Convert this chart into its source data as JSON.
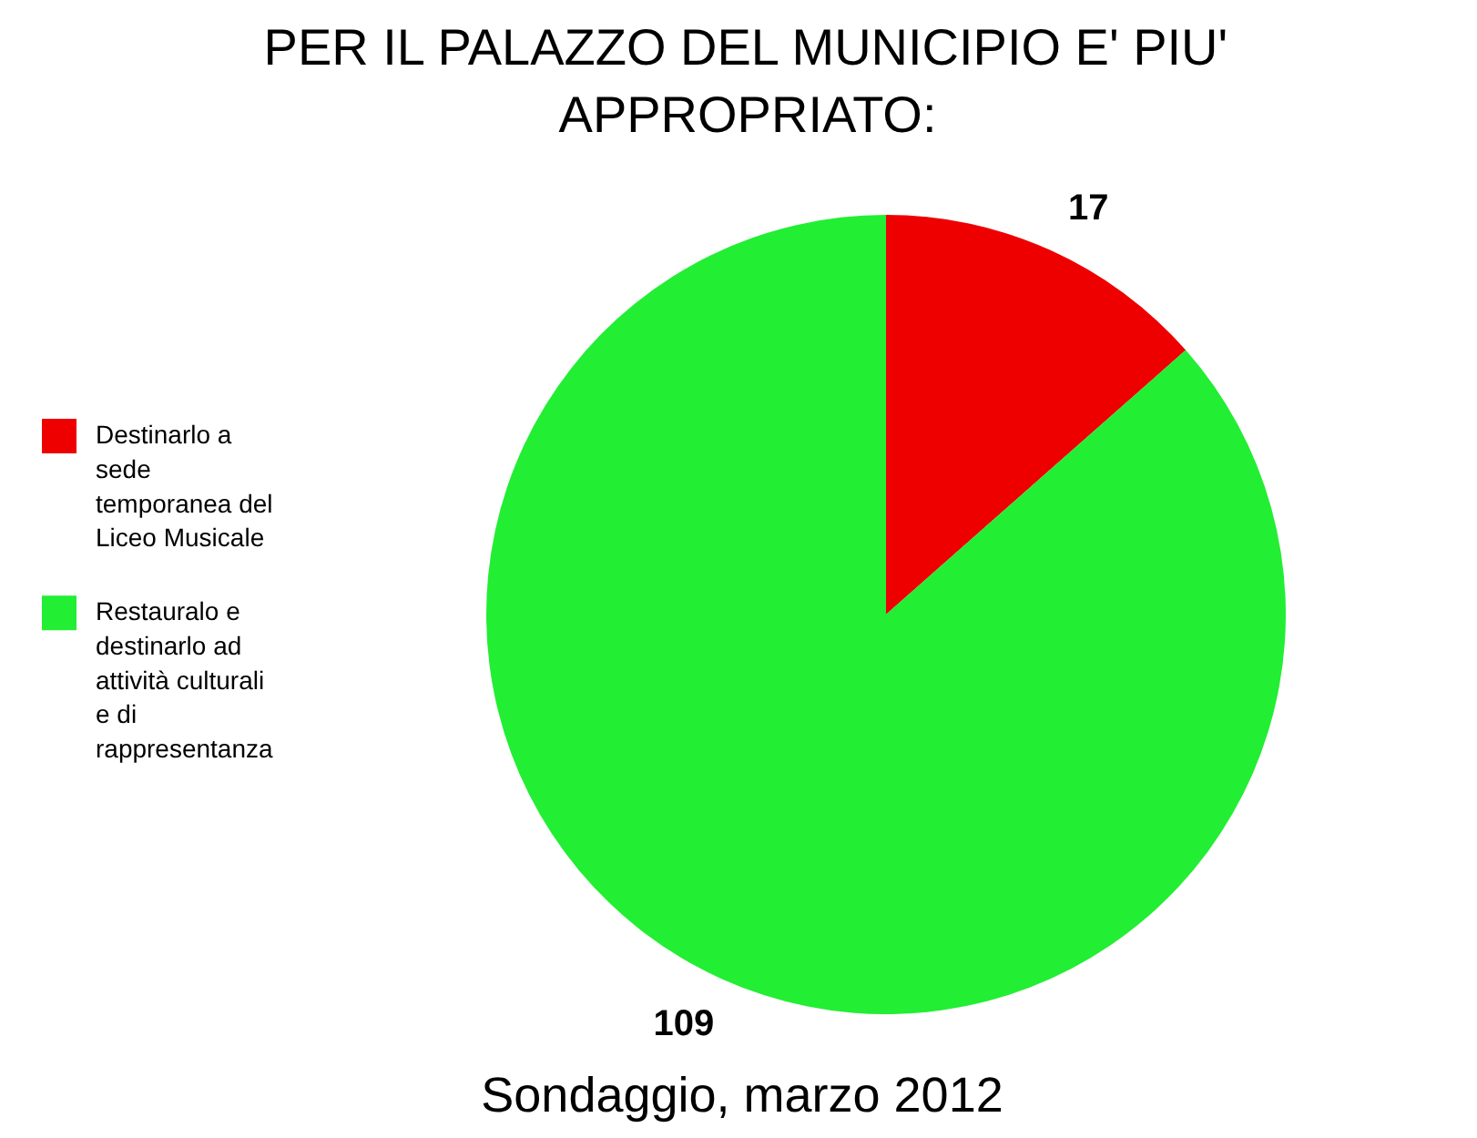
{
  "chart_data": {
    "type": "pie",
    "title": "PER IL PALAZZO DEL MUNICIPIO E' PIU' APPROPRIATO:",
    "categories": [
      "Destinarlo a sede temporanea del Liceo Musicale",
      "Restauralo e destinarlo ad attività culturali e di rappresentanza"
    ],
    "values": [
      17,
      109
    ],
    "colors": [
      "#ee0000",
      "#22ee33"
    ],
    "data_labels": true,
    "legend": "left",
    "annotations": [
      "Sondaggio, marzo 2012"
    ]
  }
}
